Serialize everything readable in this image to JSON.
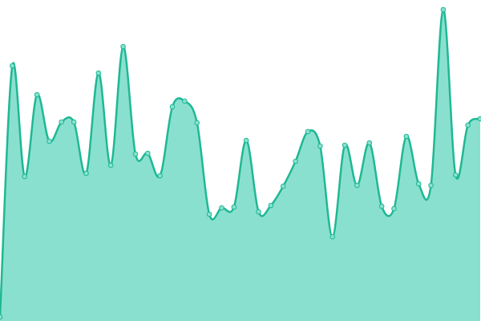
{
  "chart_data": {
    "type": "area",
    "categories": [
      null,
      null,
      null,
      null,
      null,
      null,
      null,
      null,
      null,
      null,
      null,
      null,
      null,
      null,
      null,
      null,
      null,
      null,
      null,
      null,
      null,
      null,
      null,
      null,
      null,
      null,
      null,
      null,
      null,
      null,
      null,
      null,
      null,
      null,
      null,
      null,
      null,
      null,
      null,
      null
    ],
    "series": [
      {
        "color": "#1fb894",
        "fill": "#8ae0cf",
        "values": [
          5,
          318,
          180,
          282,
          224,
          248,
          248,
          184,
          309,
          194,
          342,
          208,
          209,
          181,
          267,
          274,
          247,
          133,
          141,
          142,
          225,
          136,
          144,
          168,
          199,
          236,
          218,
          105,
          219,
          169,
          222,
          143,
          140,
          230,
          171,
          169,
          388,
          182,
          244,
          252
        ]
      }
    ],
    "ylim": [
      0,
      400
    ]
  }
}
